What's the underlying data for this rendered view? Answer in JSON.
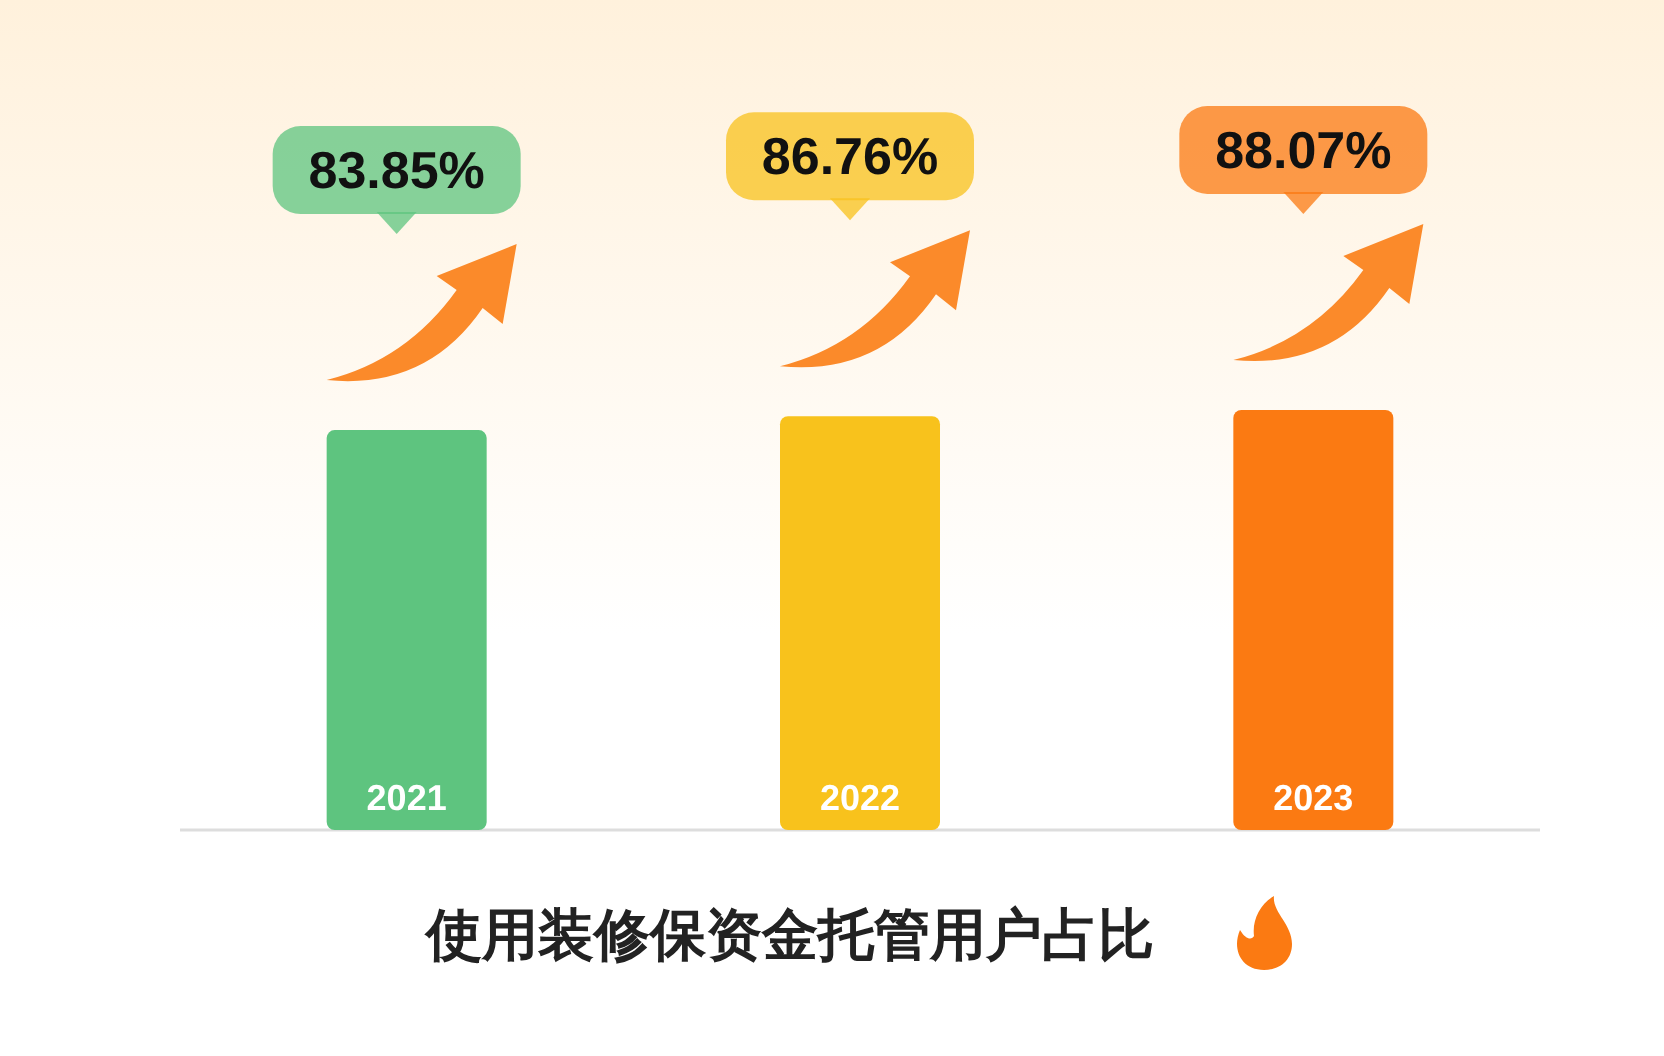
{
  "chart_data": {
    "type": "bar",
    "title": "使用装修保资金托管用户占比",
    "categories": [
      "2021",
      "2022",
      "2023"
    ],
    "values": [
      83.85,
      86.76,
      88.07
    ],
    "colors": [
      "#5ec47f",
      "#f8c21c",
      "#fb7a12"
    ],
    "value_labels": [
      "83.85%",
      "86.76%",
      "88.07%"
    ]
  }
}
